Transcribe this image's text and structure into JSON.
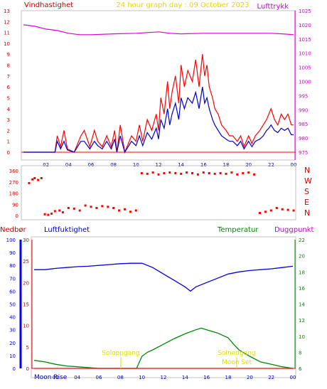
{
  "header": {
    "left_label": "Vindhastighet",
    "center_title": "24 hour graph day : 09 October 2023",
    "right_label": "Lufttrykk"
  },
  "wind_panel": {
    "left_ticks": [
      "0",
      "1",
      "2",
      "3",
      "4",
      "5",
      "6",
      "7",
      "8",
      "9",
      "10",
      "11",
      "12",
      "13"
    ],
    "right_ticks": [
      "975",
      "980",
      "985",
      "990",
      "995",
      "1000",
      "1005",
      "1010",
      "1015",
      "1020",
      "1025"
    ],
    "x_ticks": [
      "02",
      "04",
      "06",
      "08",
      "10",
      "12",
      "14",
      "16",
      "18",
      "20",
      "22",
      "00"
    ]
  },
  "direction_panel": {
    "left_ticks": [
      "0",
      "90",
      "180",
      "270",
      "360"
    ],
    "right_labels": [
      "N",
      "W",
      "S",
      "E",
      "N"
    ]
  },
  "lower_header": {
    "nedbor": "Nedbør",
    "luftfuktighet": "Luftfuktighet",
    "temperatur": "Temperatur",
    "duggpunkt": "Duggpunkt"
  },
  "lower_panel": {
    "nedbor_ticks": [
      "0",
      "10",
      "20",
      "30",
      "40",
      "50",
      "60",
      "70",
      "80",
      "90",
      "100"
    ],
    "hum_ticks": [
      "0",
      "5",
      "10",
      "15",
      "20",
      "25",
      "30"
    ],
    "temp_ticks": [
      "6",
      "8",
      "10",
      "12",
      "14",
      "16",
      "18",
      "20",
      "22"
    ],
    "x_ticks": [
      "02",
      "04",
      "06",
      "08",
      "10",
      "12",
      "14",
      "16",
      "18",
      "20",
      "22",
      "00"
    ],
    "moon_rise": "Moon Rise",
    "moon_set": "Moon Set",
    "sunrise": "Soloppgang",
    "sunset": "Solnedgang"
  },
  "chart_data": [
    {
      "type": "line",
      "x_unit": "hour",
      "xlim": [
        0,
        24
      ],
      "series": [
        {
          "axis": "left",
          "ylim": [
            0,
            13
          ],
          "color": "#ff0000",
          "x": [
            0,
            2.8,
            3.0,
            3.3,
            3.6,
            3.9,
            4.5,
            5.1,
            5.4,
            5.9,
            6.3,
            6.6,
            7.0,
            7.4,
            7.8,
            8.1,
            8.3,
            8.6,
            9.0,
            9.6,
            10.0,
            10.3,
            10.6,
            11.0,
            11.4,
            11.8,
            12.0,
            12.2,
            12.5,
            12.8,
            13.0,
            13.2,
            13.5,
            13.8,
            14.0,
            14.3,
            14.6,
            15.0,
            15.3,
            15.6,
            15.9,
            16.1,
            16.3,
            16.5,
            16.8,
            17.0,
            17.3,
            17.6,
            18.0,
            18.3,
            18.6,
            19.0,
            19.3,
            19.6,
            20.0,
            20.3,
            20.6,
            21.0,
            21.3,
            21.6,
            21.8,
            22.0,
            22.3,
            22.6,
            22.9,
            23.2,
            23.5,
            23.8,
            24.0
          ],
          "values": [
            0,
            0,
            1.5,
            0.5,
            2.0,
            0.3,
            0,
            1.5,
            2.0,
            0.5,
            2.0,
            1.0,
            0.5,
            1.5,
            0.5,
            2.0,
            0,
            2.5,
            0,
            1.5,
            1.0,
            2.5,
            1.0,
            3.0,
            2.0,
            3.5,
            2.0,
            5.0,
            3.5,
            6.5,
            4.0,
            5.5,
            7.0,
            4.5,
            8.0,
            6.0,
            7.5,
            6.5,
            8.5,
            6.0,
            9.0,
            7.0,
            8.0,
            6.0,
            5.0,
            4.0,
            3.5,
            2.5,
            2.0,
            1.5,
            1.5,
            1.0,
            1.5,
            0.5,
            1.5,
            0.8,
            1.5,
            2.0,
            2.5,
            3.0,
            3.5,
            4.0,
            3.0,
            2.5,
            3.5,
            3.0,
            3.5,
            2.5,
            2.5
          ]
        },
        {
          "axis": "left",
          "ylim": [
            0,
            13
          ],
          "color": "#0000cc",
          "x": [
            0,
            2.8,
            3.0,
            3.3,
            3.6,
            3.9,
            4.5,
            5.1,
            5.4,
            5.9,
            6.3,
            6.6,
            7.0,
            7.4,
            7.8,
            8.1,
            8.3,
            8.6,
            9.0,
            9.6,
            10.0,
            10.3,
            10.6,
            11.0,
            11.4,
            11.8,
            12.0,
            12.2,
            12.5,
            12.8,
            13.0,
            13.2,
            13.5,
            13.8,
            14.0,
            14.3,
            14.6,
            15.0,
            15.3,
            15.6,
            15.9,
            16.1,
            16.3,
            16.5,
            16.8,
            17.0,
            17.3,
            17.6,
            18.0,
            18.3,
            18.6,
            19.0,
            19.3,
            19.6,
            20.0,
            20.3,
            20.6,
            21.0,
            21.3,
            21.6,
            21.8,
            22.0,
            22.3,
            22.6,
            22.9,
            23.2,
            23.5,
            23.8,
            24.0
          ],
          "values": [
            0,
            0,
            1.0,
            0.3,
            1.0,
            0.2,
            0,
            1.0,
            1.0,
            0.3,
            1.0,
            0.6,
            0.3,
            1.0,
            0.3,
            1.2,
            0,
            1.5,
            0,
            1.0,
            0.6,
            1.5,
            0.6,
            1.8,
            1.2,
            2.2,
            1.2,
            3.0,
            2.2,
            4.0,
            2.5,
            3.5,
            4.5,
            3.0,
            5.0,
            4.0,
            5.0,
            4.5,
            5.5,
            4.0,
            6.0,
            4.5,
            5.0,
            4.0,
            3.0,
            2.5,
            2.0,
            1.5,
            1.2,
            1.0,
            1.0,
            0.6,
            1.0,
            0.3,
            1.0,
            0.5,
            1.0,
            1.2,
            1.5,
            2.0,
            2.2,
            2.5,
            2.0,
            1.8,
            2.2,
            2.0,
            2.2,
            1.6,
            1.6
          ]
        },
        {
          "axis": "right",
          "ylim": [
            975,
            1025
          ],
          "color": "#dd00dd",
          "x": [
            0,
            1,
            2,
            3,
            4,
            5,
            6,
            8,
            10,
            12,
            13,
            14,
            16,
            18,
            20,
            22,
            23,
            24
          ],
          "values": [
            1020,
            1019.5,
            1018.5,
            1018,
            1017,
            1016.5,
            1016.5,
            1016.8,
            1017,
            1017.5,
            1017,
            1016.8,
            1017,
            1017,
            1017,
            1017,
            1016.8,
            1016.5
          ]
        }
      ]
    },
    {
      "type": "scatter",
      "ylim": [
        0,
        360
      ],
      "series": [
        {
          "color": "#ff0000",
          "x": [
            0.5,
            0.8,
            1.0,
            1.3,
            1.6,
            1.9,
            2.2,
            2.5,
            2.8,
            3.2,
            3.5,
            4.0,
            4.5,
            5.0,
            5.5,
            6.0,
            6.5,
            7.0,
            7.5,
            8.0,
            8.5,
            9.0,
            9.5,
            10.0,
            10.5,
            11.0,
            11.5,
            12.0,
            12.5,
            13.0,
            13.5,
            14.0,
            14.5,
            15.0,
            15.5,
            16.0,
            16.5,
            17.0,
            17.5,
            18.0,
            18.5,
            19.0,
            19.5,
            20.0,
            20.5,
            21.0,
            21.5,
            22.0,
            22.5,
            23.0,
            23.5,
            24.0
          ],
          "values": [
            260,
            290,
            300,
            285,
            300,
            10,
            5,
            15,
            35,
            40,
            25,
            60,
            55,
            40,
            80,
            70,
            60,
            75,
            70,
            60,
            40,
            50,
            30,
            40,
            340,
            335,
            345,
            330,
            340,
            345,
            340,
            335,
            345,
            340,
            330,
            345,
            340,
            335,
            340,
            335,
            345,
            330,
            340,
            345,
            330,
            20,
            30,
            40,
            60,
            50,
            45,
            40
          ]
        }
      ]
    },
    {
      "type": "line",
      "x_unit": "hour",
      "xlim": [
        0,
        24
      ],
      "series": [
        {
          "axis": "humidity",
          "ylim": [
            0,
            30
          ],
          "color": "#0000ee",
          "x": [
            0,
            1,
            2,
            3,
            4,
            5,
            6,
            7,
            8,
            9,
            10,
            11,
            12,
            13,
            14,
            14.5,
            15,
            16,
            17,
            18,
            19,
            20,
            21,
            22,
            23,
            24
          ],
          "values": [
            23,
            23,
            23.3,
            23.5,
            23.7,
            23.8,
            24,
            24.2,
            24.4,
            24.5,
            24.5,
            23.5,
            22,
            20.5,
            19,
            18,
            19,
            20,
            21,
            22,
            22.5,
            22.8,
            23,
            23.2,
            23.5,
            23.8
          ]
        },
        {
          "axis": "temperature",
          "ylim": [
            6,
            22
          ],
          "color": "#008800",
          "x": [
            0,
            1,
            2,
            3,
            4,
            5,
            6,
            7,
            8,
            9,
            9.5,
            10,
            10.5,
            11,
            12,
            13,
            14,
            15,
            15.5,
            16,
            17,
            18,
            18.5,
            19,
            20,
            21,
            22,
            23,
            24
          ],
          "values": [
            7,
            6.8,
            6.5,
            6.3,
            6.2,
            6.1,
            6.0,
            6.0,
            6.0,
            6.0,
            6.0,
            7.5,
            8.0,
            8.3,
            9.0,
            9.7,
            10.3,
            10.8,
            11.0,
            10.8,
            10.4,
            9.8,
            9.0,
            8.3,
            7.5,
            6.8,
            6.5,
            6.2,
            6.0
          ]
        },
        {
          "axis": "temperature",
          "ylim": [
            6,
            22
          ],
          "color": "#ff0000",
          "x": [
            0,
            24
          ],
          "values": [
            6.0,
            6.0
          ]
        }
      ]
    }
  ]
}
